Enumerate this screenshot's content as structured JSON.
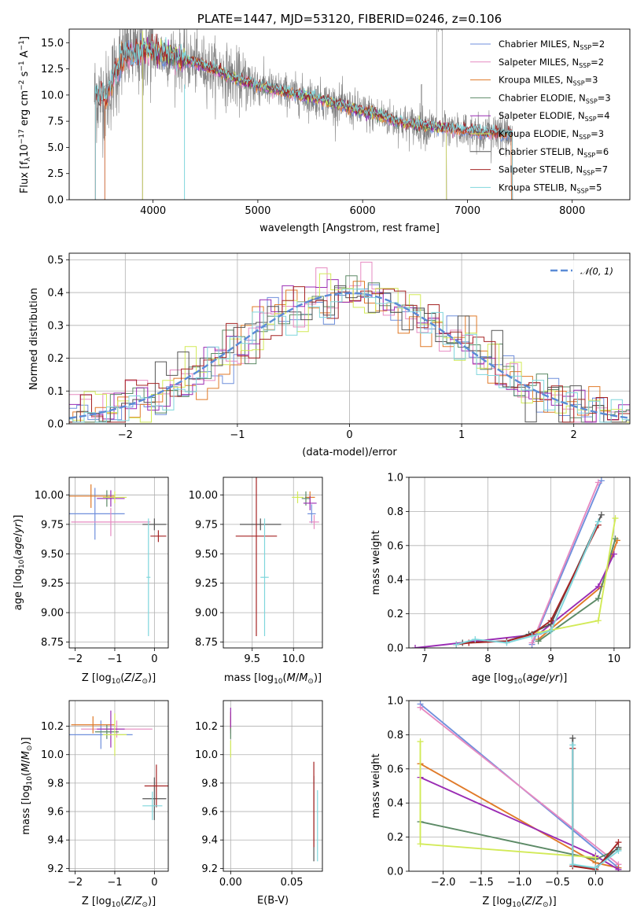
{
  "colors": {
    "Chabrier MILES": "#6f8fdc",
    "Salpeter MILES": "#e68ac1",
    "Kroupa MILES": "#e07a28",
    "Chabrier ELODIE": "#5c8a66",
    "Salpeter ELODIE": "#9a2cb4",
    "Kroupa ELODIE": "#d2ea57",
    "Chabrier STELIB": "#555555",
    "Salpeter STELIB": "#a52424",
    "Kroupa STELIB": "#7fd6dc",
    "data": "#808080",
    "gauss": "#5b8bd6"
  },
  "chart_data": [
    {
      "id": "spectrum",
      "type": "line",
      "title": "PLATE=1447, MJD=53120, FIBERID=0246, z=0.106",
      "xlabel": "wavelength [Angstrom, rest frame]",
      "ylabel": "Flux [f$_{\\lambda}$10$^{-17}$ erg cm$^{-2}$ s$^{-1}$ A$^{-1}$]",
      "xlim": [
        3200,
        8550
      ],
      "ylim": [
        0,
        16.3
      ],
      "xticks": [
        "4000",
        "5000",
        "6000",
        "7000",
        "8000"
      ],
      "yticks": [
        "0.0",
        "2.5",
        "5.0",
        "7.5",
        "10.0",
        "12.5",
        "15.0"
      ],
      "legend_location": "upper right",
      "legend": [
        {
          "label": "Chabrier MILES, N",
          "sub": "SSP",
          "suffix": "=2"
        },
        {
          "label": "Salpeter MILES, N",
          "sub": "SSP",
          "suffix": "=2"
        },
        {
          "label": "Kroupa MILES, N",
          "sub": "SSP",
          "suffix": "=3"
        },
        {
          "label": "Chabrier ELODIE, N",
          "sub": "SSP",
          "suffix": "=3"
        },
        {
          "label": "Salpeter ELODIE, N",
          "sub": "SSP",
          "suffix": "=4"
        },
        {
          "label": "Kroupa ELODIE, N",
          "sub": "SSP",
          "suffix": "=3"
        },
        {
          "label": "Chabrier STELIB, N",
          "sub": "SSP",
          "suffix": "=6"
        },
        {
          "label": "Salpeter STELIB, N",
          "sub": "SSP",
          "suffix": "=7"
        },
        {
          "label": "Kroupa STELIB, N",
          "sub": "SSP",
          "suffix": "=5"
        }
      ],
      "model_continuum": {
        "x": [
          3450,
          3550,
          3650,
          3750,
          3850,
          3950,
          4050,
          4200,
          4400,
          4600,
          4800,
          5000,
          5200,
          5400,
          5600,
          5800,
          6000,
          6200,
          6400,
          6600,
          6800,
          7000,
          7200,
          7400
        ],
        "y": [
          10.0,
          9.7,
          12.4,
          14.2,
          13.8,
          14.4,
          14.0,
          13.7,
          13.1,
          12.4,
          11.5,
          10.9,
          10.4,
          10.0,
          9.6,
          9.0,
          8.4,
          7.9,
          7.3,
          7.0,
          6.8,
          6.6,
          6.4,
          6.3
        ]
      }
    },
    {
      "id": "residuals",
      "type": "histogram",
      "xlabel": "(data-model)/error",
      "ylabel": "Normed distribution",
      "xlim": [
        -2.5,
        2.5
      ],
      "ylim": [
        0,
        0.52
      ],
      "xticks": [
        "−2",
        "−1",
        "0",
        "1",
        "2"
      ],
      "yticks": [
        "0.0",
        "0.1",
        "0.2",
        "0.3",
        "0.4",
        "0.5"
      ],
      "grid": true,
      "legend": [
        {
          "label": "𝒩(0, 1)"
        }
      ],
      "bin_width": 0.1
    },
    {
      "id": "age-vs-Z",
      "type": "scatter",
      "xlabel": "Z [log$_{10}$(Z/Z$_{\\odot}$)]",
      "ylabel": "age  [log$_{10}$(age/yr)]",
      "xlim": [
        -2.15,
        0.35
      ],
      "ylim": [
        8.7,
        10.15
      ],
      "xticks": [
        "−2",
        "−1",
        "0"
      ],
      "yticks": [
        "8.75",
        "9.00",
        "9.25",
        "9.50",
        "9.75",
        "10.00"
      ],
      "points": [
        {
          "model": "Chabrier MILES",
          "x": -1.5,
          "y": 9.84,
          "xerr": 0.75,
          "yerr": 0.22
        },
        {
          "model": "Salpeter MILES",
          "x": -1.1,
          "y": 9.77,
          "xerr": 1.0,
          "yerr": 0.12
        },
        {
          "model": "Kroupa MILES",
          "x": -1.6,
          "y": 9.99,
          "xerr": 0.6,
          "yerr": 0.1
        },
        {
          "model": "Chabrier ELODIE",
          "x": -1.2,
          "y": 9.97,
          "xerr": 0.25,
          "yerr": 0.07
        },
        {
          "model": "Salpeter ELODIE",
          "x": -1.1,
          "y": 9.97,
          "xerr": 0.35,
          "yerr": 0.07
        },
        {
          "model": "Kroupa ELODIE",
          "x": -1.0,
          "y": 9.98,
          "xerr": 0.3,
          "yerr": 0.05
        },
        {
          "model": "Chabrier STELIB",
          "x": 0.0,
          "y": 9.75,
          "xerr": 0.3,
          "yerr": 0.05
        },
        {
          "model": "Salpeter STELIB",
          "x": 0.1,
          "y": 9.65,
          "xerr": 0.2,
          "yerr": 0.05
        },
        {
          "model": "Kroupa STELIB",
          "x": -0.15,
          "y": 9.3,
          "xerr": 0.05,
          "yerr": 0.5
        }
      ]
    },
    {
      "id": "age-vs-mass",
      "type": "scatter",
      "xlabel": "mass [log$_{10}$(M/M$_{\\odot}$)]",
      "xlim": [
        9.15,
        10.35
      ],
      "ylim": [
        8.7,
        10.15
      ],
      "xticks": [
        "9.5",
        "10.0"
      ],
      "yticks": [
        "8.75",
        "9.00",
        "9.25",
        "9.50",
        "9.75",
        "10.00"
      ],
      "points": [
        {
          "model": "Chabrier MILES",
          "x": 10.22,
          "y": 9.84,
          "xerr": 0.05,
          "yerr": 0.08
        },
        {
          "model": "Salpeter MILES",
          "x": 10.25,
          "y": 9.77,
          "xerr": 0.06,
          "yerr": 0.06
        },
        {
          "model": "Kroupa MILES",
          "x": 10.2,
          "y": 9.98,
          "xerr": 0.06,
          "yerr": 0.05
        },
        {
          "model": "Chabrier ELODIE",
          "x": 10.15,
          "y": 9.97,
          "xerr": 0.05,
          "yerr": 0.06
        },
        {
          "model": "Salpeter ELODIE",
          "x": 10.2,
          "y": 9.93,
          "xerr": 0.08,
          "yerr": 0.06
        },
        {
          "model": "Kroupa ELODIE",
          "x": 10.05,
          "y": 9.98,
          "xerr": 0.07,
          "yerr": 0.05
        },
        {
          "model": "Chabrier STELIB",
          "x": 9.6,
          "y": 9.75,
          "xerr": 0.25,
          "yerr": 0.05
        },
        {
          "model": "Salpeter STELIB",
          "x": 9.55,
          "y": 9.65,
          "xerr": 0.25,
          "yerr": 0.85
        },
        {
          "model": "Kroupa STELIB",
          "x": 9.65,
          "y": 9.3,
          "xerr": 0.05,
          "yerr": 0.5
        }
      ]
    },
    {
      "id": "mass-weight-vs-age",
      "type": "line",
      "xlabel": "age  [log$_{10}$(age/yr)]",
      "ylabel": "mass weight",
      "xlim": [
        6.75,
        10.25
      ],
      "ylim": [
        0,
        1.0
      ],
      "xticks": [
        "7",
        "8",
        "9",
        "10"
      ],
      "yticks": [
        "0.0",
        "0.2",
        "0.4",
        "0.6",
        "0.8",
        "1.0"
      ],
      "series": [
        {
          "model": "Chabrier MILES",
          "x": [
            8.7,
            9.8
          ],
          "y": [
            0.02,
            0.98
          ]
        },
        {
          "model": "Salpeter MILES",
          "x": [
            8.7,
            9.75
          ],
          "y": [
            0.03,
            0.97
          ]
        },
        {
          "model": "Kroupa MILES",
          "x": [
            8.8,
            9.8,
            10.05
          ],
          "y": [
            0.05,
            0.36,
            0.63
          ]
        },
        {
          "model": "Chabrier ELODIE",
          "x": [
            8.8,
            9.75,
            10.02
          ],
          "y": [
            0.04,
            0.29,
            0.64
          ]
        },
        {
          "model": "Salpeter ELODIE",
          "x": [
            6.85,
            8.8,
            9.75,
            10.0
          ],
          "y": [
            0.0,
            0.08,
            0.36,
            0.55
          ]
        },
        {
          "model": "Kroupa ELODIE",
          "x": [
            8.8,
            9.75,
            10.02
          ],
          "y": [
            0.09,
            0.16,
            0.76
          ]
        },
        {
          "model": "Chabrier STELIB",
          "x": [
            7.6,
            8.3,
            8.65,
            9.0,
            9.8
          ],
          "y": [
            0.03,
            0.04,
            0.08,
            0.14,
            0.78
          ]
        },
        {
          "model": "Salpeter STELIB",
          "x": [
            7.5,
            7.7,
            8.3,
            8.7,
            9.0,
            9.75
          ],
          "y": [
            0.02,
            0.03,
            0.04,
            0.08,
            0.16,
            0.72
          ]
        },
        {
          "model": "Kroupa STELIB",
          "x": [
            7.5,
            7.8,
            8.3,
            8.7,
            9.0,
            9.75
          ],
          "y": [
            0.02,
            0.05,
            0.03,
            0.07,
            0.1,
            0.74
          ]
        }
      ]
    },
    {
      "id": "mass-vs-Z",
      "type": "scatter",
      "xlabel": "Z [log$_{10}$(Z/Z$_{\\odot}$)]",
      "ylabel": "mass [log$_{10}$(M/M$_{\\odot}$)]",
      "xlim": [
        -2.15,
        0.35
      ],
      "ylim": [
        9.18,
        10.38
      ],
      "xticks": [
        "−2",
        "−1",
        "0"
      ],
      "yticks": [
        "9.2",
        "9.4",
        "9.6",
        "9.8",
        "10.0",
        "10.2"
      ],
      "points": [
        {
          "model": "Chabrier MILES",
          "x": -1.35,
          "y": 10.14,
          "xerr": 0.8,
          "yerr": 0.1
        },
        {
          "model": "Salpeter MILES",
          "x": -0.95,
          "y": 10.18,
          "xerr": 0.9,
          "yerr": 0.06
        },
        {
          "model": "Kroupa MILES",
          "x": -1.55,
          "y": 10.21,
          "xerr": 0.55,
          "yerr": 0.06
        },
        {
          "model": "Chabrier ELODIE",
          "x": -1.2,
          "y": 10.16,
          "xerr": 0.3,
          "yerr": 0.05
        },
        {
          "model": "Salpeter ELODIE",
          "x": -1.1,
          "y": 10.18,
          "xerr": 0.35,
          "yerr": 0.13
        },
        {
          "model": "Kroupa ELODIE",
          "x": -1.0,
          "y": 10.14,
          "xerr": 0.3,
          "yerr": 0.15
        },
        {
          "model": "Chabrier STELIB",
          "x": 0.0,
          "y": 9.69,
          "xerr": 0.3,
          "yerr": 0.15
        },
        {
          "model": "Salpeter STELIB",
          "x": 0.05,
          "y": 9.78,
          "xerr": 0.3,
          "yerr": 0.15
        },
        {
          "model": "Kroupa STELIB",
          "x": -0.05,
          "y": 9.64,
          "xerr": 0.25,
          "yerr": 0.1
        }
      ]
    },
    {
      "id": "mass-vs-ebv",
      "type": "scatter",
      "xlabel": "E(B-V)",
      "xlim": [
        -0.006,
        0.075
      ],
      "ylim": [
        9.18,
        10.38
      ],
      "xticks": [
        "0.00",
        "0.05"
      ],
      "yticks": [
        "9.2",
        "9.4",
        "9.6",
        "9.8",
        "10.0",
        "10.2"
      ],
      "points": [
        {
          "model": "Chabrier MILES",
          "x": 0.0,
          "y": 10.22,
          "xerr": 0.0,
          "yerr": 0.05
        },
        {
          "model": "Salpeter MILES",
          "x": 0.0,
          "y": 10.2,
          "xerr": 0.0,
          "yerr": 0.05
        },
        {
          "model": "Kroupa MILES",
          "x": 0.0,
          "y": 10.24,
          "xerr": 0.0,
          "yerr": 0.06
        },
        {
          "model": "Chabrier ELODIE",
          "x": 0.0,
          "y": 10.15,
          "xerr": 0.0,
          "yerr": 0.04
        },
        {
          "model": "Salpeter ELODIE",
          "x": 0.0,
          "y": 10.26,
          "xerr": 0.0,
          "yerr": 0.07
        },
        {
          "model": "Kroupa ELODIE",
          "x": 0.0,
          "y": 10.04,
          "xerr": 0.0,
          "yerr": 0.06
        },
        {
          "model": "Chabrier STELIB",
          "x": 0.068,
          "y": 9.55,
          "xerr": 0.0,
          "yerr": 0.3
        },
        {
          "model": "Salpeter STELIB",
          "x": 0.068,
          "y": 9.65,
          "xerr": 0.0,
          "yerr": 0.3
        },
        {
          "model": "Kroupa STELIB",
          "x": 0.071,
          "y": 9.5,
          "xerr": 0.0,
          "yerr": 0.25
        }
      ]
    },
    {
      "id": "mass-weight-vs-Z",
      "type": "line",
      "xlabel": "Z [log$_{10}$(Z/Z$_{\\odot}$)]",
      "ylabel": "mass weight",
      "xlim": [
        -2.45,
        0.45
      ],
      "ylim": [
        0,
        1.0
      ],
      "xticks": [
        "−2.0",
        "−1.5",
        "−1.0",
        "−0.5",
        "0.0"
      ],
      "yticks": [
        "0.0",
        "0.2",
        "0.4",
        "0.6",
        "0.8",
        "1.0"
      ],
      "series": [
        {
          "model": "Chabrier MILES",
          "x": [
            -2.3,
            0.3
          ],
          "y": [
            0.98,
            0.02
          ]
        },
        {
          "model": "Salpeter MILES",
          "x": [
            -2.3,
            0.3
          ],
          "y": [
            0.96,
            0.04
          ]
        },
        {
          "model": "Kroupa MILES",
          "x": [
            -2.3,
            0.0,
            0.3
          ],
          "y": [
            0.63,
            0.05,
            0.02
          ]
        },
        {
          "model": "Chabrier ELODIE",
          "x": [
            -2.3,
            0.0,
            0.3
          ],
          "y": [
            0.29,
            0.07,
            0.13
          ]
        },
        {
          "model": "Salpeter ELODIE",
          "x": [
            -2.3,
            0.0,
            0.3
          ],
          "y": [
            0.55,
            0.09,
            0.01
          ]
        },
        {
          "model": "Kroupa ELODIE",
          "x": [
            -2.3,
            -2.3,
            0.0
          ],
          "y": [
            0.76,
            0.16,
            0.08
          ]
        },
        {
          "model": "Chabrier STELIB",
          "x": [
            -0.3,
            -0.3,
            0.0,
            0.3
          ],
          "y": [
            0.78,
            0.03,
            0.02,
            0.14
          ]
        },
        {
          "model": "Salpeter STELIB",
          "x": [
            -0.3,
            -0.3,
            0.0,
            0.3
          ],
          "y": [
            0.72,
            0.03,
            0.01,
            0.17
          ]
        },
        {
          "model": "Kroupa STELIB",
          "x": [
            -0.3,
            -0.3,
            0.0,
            0.3
          ],
          "y": [
            0.74,
            0.04,
            0.02,
            0.12
          ]
        }
      ]
    }
  ]
}
